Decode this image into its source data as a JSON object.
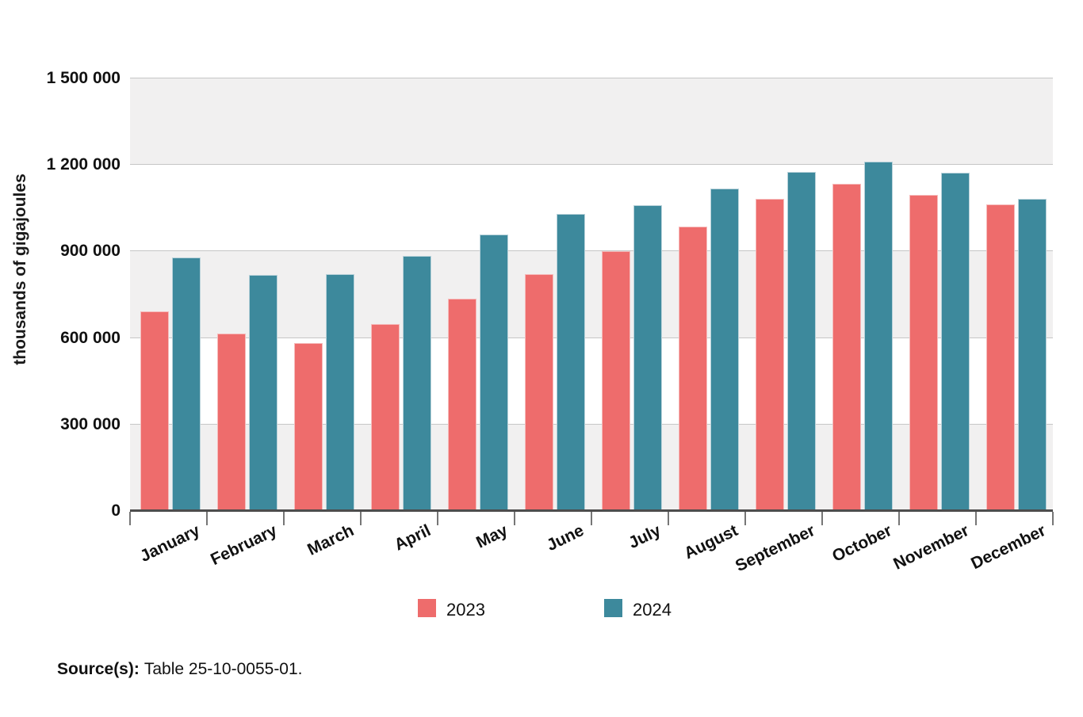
{
  "chart_data": {
    "type": "bar",
    "title": "",
    "ylabel": "thousands of gigajoules",
    "xlabel": "",
    "ylim": [
      0,
      1500000
    ],
    "ytick_step": 300000,
    "ytick_labels_top_to_bottom": [
      "1 500 000",
      "1 200 000",
      "900 000",
      "600 000",
      "300 000",
      "0"
    ],
    "grid": "horizontal alternating bands",
    "legend_position": "bottom-center",
    "categories": [
      "January",
      "February",
      "March",
      "April",
      "May",
      "June",
      "July",
      "August",
      "September",
      "October",
      "November",
      "December"
    ],
    "series": [
      {
        "name": "2023",
        "color": "#ee6c6c",
        "edge_color": "#f6bcbc",
        "values": [
          690000,
          613000,
          580000,
          646000,
          733000,
          820000,
          898000,
          983000,
          1080000,
          1133000,
          1093000,
          1060000
        ]
      },
      {
        "name": "2024",
        "color": "#3d899c",
        "edge_color": "#b9d2da",
        "values": [
          876000,
          816000,
          820000,
          883000,
          956000,
          1027000,
          1057000,
          1115000,
          1173000,
          1209000,
          1170000,
          1080000
        ]
      }
    ],
    "colors": {
      "band_gray": "#f1f0f0",
      "band_white": "#ffffff",
      "gridline": "#c6c6c6",
      "axis_line": "#4d4d4d",
      "tick": "#767676"
    }
  },
  "legend": {
    "items": [
      {
        "label": "2023",
        "color": "#ee6c6c"
      },
      {
        "label": "2024",
        "color": "#3d899c"
      }
    ]
  },
  "source": {
    "label": "Source(s):",
    "text": "Table 25-10-0055-01."
  }
}
